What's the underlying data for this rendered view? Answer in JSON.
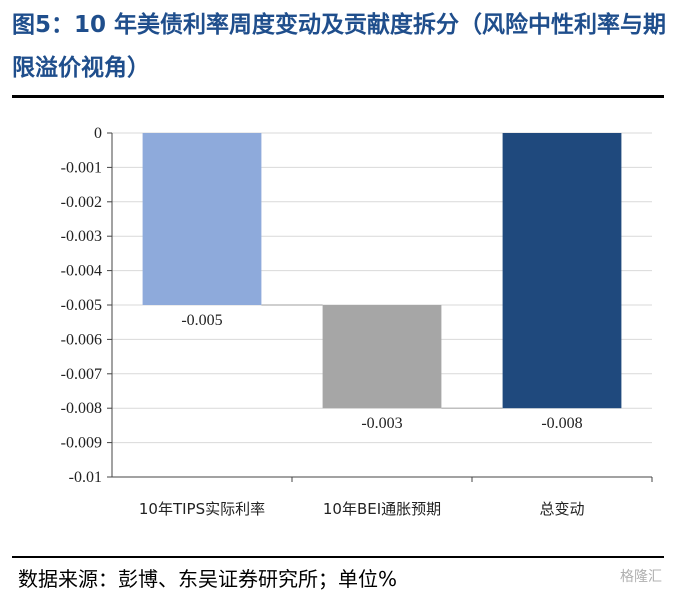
{
  "title": "图5：10 年美债利率周度变动及贡献度拆分（风险中性利率与期限溢价视角）",
  "source": "数据来源：彭博、东吴证券研究所；单位%",
  "watermark": "格隆汇",
  "chart_data": {
    "type": "bar",
    "subtype": "waterfall",
    "categories": [
      "10年TIPS实际利率",
      "10年BEI通胀预期",
      "总变动"
    ],
    "values": [
      -0.005,
      -0.003,
      -0.008
    ],
    "data_labels": [
      "-0.005",
      "-0.003",
      "-0.008"
    ],
    "colors": [
      "#8eaadb",
      "#a6a6a6",
      "#1f497d"
    ],
    "ylim": [
      -0.01,
      0
    ],
    "yticks": [
      0,
      -0.001,
      -0.002,
      -0.003,
      -0.004,
      -0.005,
      -0.006,
      -0.007,
      -0.008,
      -0.009,
      -0.01
    ],
    "ytick_labels": [
      "0",
      "-0.001",
      "-0.002",
      "-0.003",
      "-0.004",
      "-0.005",
      "-0.006",
      "-0.007",
      "-0.008",
      "-0.009",
      "-0.01"
    ],
    "grid": true,
    "legend": false
  }
}
